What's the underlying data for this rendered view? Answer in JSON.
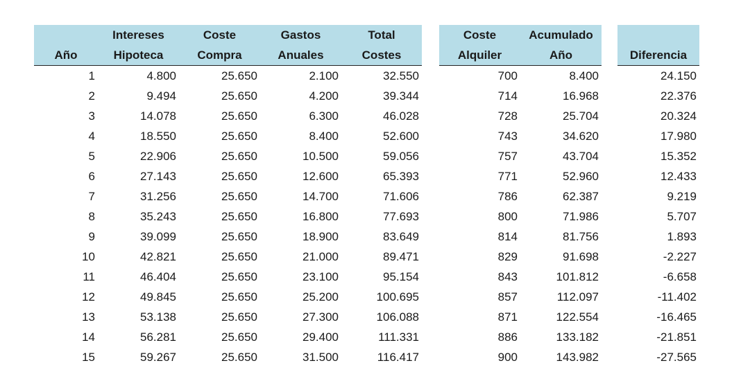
{
  "table_main": {
    "headers": [
      [
        "",
        "Intereses",
        "Coste",
        "Gastos",
        "Total"
      ],
      [
        "Año",
        "Hipoteca",
        "Compra",
        "Anuales",
        "Costes"
      ]
    ],
    "rows": [
      [
        "1",
        "4.800",
        "25.650",
        "2.100",
        "32.550"
      ],
      [
        "2",
        "9.494",
        "25.650",
        "4.200",
        "39.344"
      ],
      [
        "3",
        "14.078",
        "25.650",
        "6.300",
        "46.028"
      ],
      [
        "4",
        "18.550",
        "25.650",
        "8.400",
        "52.600"
      ],
      [
        "5",
        "22.906",
        "25.650",
        "10.500",
        "59.056"
      ],
      [
        "6",
        "27.143",
        "25.650",
        "12.600",
        "65.393"
      ],
      [
        "7",
        "31.256",
        "25.650",
        "14.700",
        "71.606"
      ],
      [
        "8",
        "35.243",
        "25.650",
        "16.800",
        "77.693"
      ],
      [
        "9",
        "39.099",
        "25.650",
        "18.900",
        "83.649"
      ],
      [
        "10",
        "42.821",
        "25.650",
        "21.000",
        "89.471"
      ],
      [
        "11",
        "46.404",
        "25.650",
        "23.100",
        "95.154"
      ],
      [
        "12",
        "49.845",
        "25.650",
        "25.200",
        "100.695"
      ],
      [
        "13",
        "53.138",
        "25.650",
        "27.300",
        "106.088"
      ],
      [
        "14",
        "56.281",
        "25.650",
        "29.400",
        "111.331"
      ],
      [
        "15",
        "59.267",
        "25.650",
        "31.500",
        "116.417"
      ]
    ]
  },
  "table_rent": {
    "headers": [
      [
        "Coste",
        "Acumulado"
      ],
      [
        "Alquiler",
        "Año"
      ]
    ],
    "rows": [
      [
        "700",
        "8.400"
      ],
      [
        "714",
        "16.968"
      ],
      [
        "728",
        "25.704"
      ],
      [
        "743",
        "34.620"
      ],
      [
        "757",
        "43.704"
      ],
      [
        "771",
        "52.960"
      ],
      [
        "786",
        "62.387"
      ],
      [
        "800",
        "71.986"
      ],
      [
        "814",
        "81.756"
      ],
      [
        "829",
        "91.698"
      ],
      [
        "843",
        "101.812"
      ],
      [
        "857",
        "112.097"
      ],
      [
        "871",
        "122.554"
      ],
      [
        "886",
        "133.182"
      ],
      [
        "900",
        "143.982"
      ]
    ]
  },
  "table_diff": {
    "headers": [
      [
        ""
      ],
      [
        "Diferencia"
      ]
    ],
    "rows": [
      [
        "24.150"
      ],
      [
        "22.376"
      ],
      [
        "20.324"
      ],
      [
        "17.980"
      ],
      [
        "15.352"
      ],
      [
        "12.433"
      ],
      [
        "9.219"
      ],
      [
        "5.707"
      ],
      [
        "1.893"
      ],
      [
        "-2.227"
      ],
      [
        "-6.658"
      ],
      [
        "-11.402"
      ],
      [
        "-16.465"
      ],
      [
        "-21.851"
      ],
      [
        "-27.565"
      ]
    ]
  }
}
